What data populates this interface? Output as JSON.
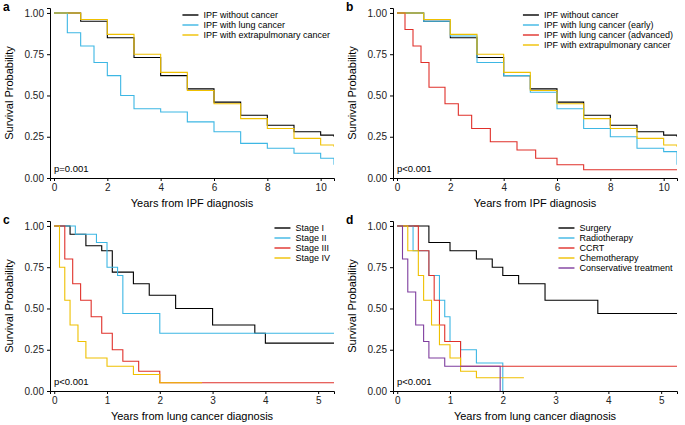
{
  "chart_data": [
    {
      "type": "step",
      "title": "a",
      "x_label": "Years from IPF diagnosis",
      "y_label": "Survival Probability",
      "annotation": "p=0.001",
      "legend": "top-right",
      "grid": false,
      "xlim": [
        -0.15,
        10.5
      ],
      "xticks": [
        0,
        2,
        4,
        6,
        8,
        10
      ],
      "ylim": [
        0,
        1.03
      ],
      "yticks": [
        {
          "value": 0,
          "label": "0.00"
        },
        {
          "value": 0.25,
          "label": "0.25"
        },
        {
          "value": 0.5,
          "label": "0.50"
        },
        {
          "value": 0.75,
          "label": "0.75"
        },
        {
          "value": 1,
          "label": "1.00"
        }
      ],
      "series": [
        {
          "name": "IPF without cancer",
          "color": "#000000",
          "x": [
            0,
            1,
            2,
            3,
            4,
            5,
            6,
            7,
            8,
            9,
            10,
            10.5
          ],
          "values": [
            1,
            0.95,
            0.85,
            0.73,
            0.62,
            0.54,
            0.46,
            0.38,
            0.32,
            0.28,
            0.26,
            0.25
          ]
        },
        {
          "name": "IPF with lung cancer",
          "color": "#3DB7E4",
          "x": [
            0,
            0.5,
            1,
            1.5,
            2,
            2.5,
            3,
            4,
            5,
            6,
            7,
            8,
            9,
            10,
            10.5
          ],
          "values": [
            1,
            0.88,
            0.8,
            0.7,
            0.62,
            0.5,
            0.42,
            0.4,
            0.34,
            0.28,
            0.21,
            0.18,
            0.15,
            0.12,
            0.08
          ]
        },
        {
          "name": "IPF with extrapulmonary cancer",
          "color": "#EFC000",
          "x": [
            0,
            1,
            2,
            3,
            4,
            5,
            6,
            7,
            8,
            9,
            10,
            10.5
          ],
          "values": [
            1,
            0.96,
            0.87,
            0.75,
            0.64,
            0.53,
            0.45,
            0.36,
            0.3,
            0.24,
            0.2,
            0.19
          ]
        }
      ]
    },
    {
      "type": "step",
      "title": "b",
      "x_label": "Years from IPF diagnosis",
      "y_label": "Survival Probability",
      "annotation": "p<0.001",
      "legend": "top-right",
      "grid": false,
      "xlim": [
        -0.15,
        10.5
      ],
      "xticks": [
        0,
        2,
        4,
        6,
        8,
        10
      ],
      "ylim": [
        0,
        1.03
      ],
      "yticks": [
        {
          "value": 0,
          "label": "0.00"
        },
        {
          "value": 0.25,
          "label": "0.25"
        },
        {
          "value": 0.5,
          "label": "0.50"
        },
        {
          "value": 0.75,
          "label": "0.75"
        },
        {
          "value": 1,
          "label": "1.00"
        }
      ],
      "series": [
        {
          "name": "IPF without cancer",
          "color": "#000000",
          "x": [
            0,
            1,
            2,
            3,
            4,
            5,
            6,
            7,
            8,
            9,
            10,
            10.5
          ],
          "values": [
            1,
            0.95,
            0.85,
            0.73,
            0.62,
            0.54,
            0.46,
            0.38,
            0.32,
            0.28,
            0.26,
            0.25
          ]
        },
        {
          "name": "IPF with lung cancer (early)",
          "color": "#3DB7E4",
          "x": [
            0,
            1,
            2,
            3,
            4,
            5,
            6,
            7,
            8,
            9,
            10,
            10.5
          ],
          "values": [
            1,
            0.95,
            0.86,
            0.7,
            0.62,
            0.52,
            0.42,
            0.3,
            0.25,
            0.18,
            0.16,
            0.08
          ]
        },
        {
          "name": "IPF with lung cancer (advanced)",
          "color": "#E0302A",
          "x": [
            0,
            0.3,
            0.6,
            0.9,
            1.2,
            1.8,
            2.3,
            2.8,
            3.5,
            4.5,
            5.2,
            6,
            7,
            10.5
          ],
          "values": [
            1,
            0.9,
            0.8,
            0.7,
            0.55,
            0.45,
            0.38,
            0.3,
            0.22,
            0.17,
            0.12,
            0.08,
            0.05,
            0.05
          ]
        },
        {
          "name": "IPF with extrapulmonary cancer",
          "color": "#EFC000",
          "x": [
            0,
            1,
            2,
            3,
            4,
            5,
            6,
            7,
            8,
            9,
            10,
            10.5
          ],
          "values": [
            1,
            0.96,
            0.87,
            0.75,
            0.64,
            0.53,
            0.45,
            0.36,
            0.3,
            0.24,
            0.2,
            0.19
          ]
        }
      ]
    },
    {
      "type": "step",
      "title": "c",
      "x_label": "Years from lung cancer diagnosis",
      "y_label": "Survival Probability",
      "annotation": "p<0.001",
      "legend": "top-right",
      "grid": false,
      "xlim": [
        -0.08,
        5.3
      ],
      "xticks": [
        0,
        1,
        2,
        3,
        4,
        5
      ],
      "ylim": [
        0,
        1.03
      ],
      "yticks": [
        {
          "value": 0,
          "label": "0.00"
        },
        {
          "value": 0.25,
          "label": "0.25"
        },
        {
          "value": 0.5,
          "label": "0.50"
        },
        {
          "value": 0.75,
          "label": "0.75"
        },
        {
          "value": 1,
          "label": "1.00"
        }
      ],
      "series": [
        {
          "name": "Stage I",
          "color": "#000000",
          "x": [
            0,
            0.3,
            0.6,
            0.9,
            1.1,
            1.5,
            1.8,
            2.3,
            3,
            3.8,
            4,
            5.3
          ],
          "values": [
            1,
            0.95,
            0.88,
            0.85,
            0.72,
            0.65,
            0.58,
            0.5,
            0.4,
            0.35,
            0.29,
            0.29
          ]
        },
        {
          "name": "Stage II",
          "color": "#3DB7E4",
          "x": [
            0,
            0.4,
            0.8,
            1,
            1.2,
            1.3,
            1.9,
            2,
            5.3
          ],
          "values": [
            1,
            0.95,
            0.9,
            0.75,
            0.7,
            0.47,
            0.47,
            0.35,
            0.35
          ]
        },
        {
          "name": "Stage III",
          "color": "#E0302A",
          "x": [
            0,
            0.2,
            0.35,
            0.5,
            0.7,
            0.9,
            1.1,
            1.3,
            1.6,
            2,
            5.3
          ],
          "values": [
            1,
            0.8,
            0.65,
            0.55,
            0.45,
            0.35,
            0.25,
            0.18,
            0.12,
            0.05,
            0.05
          ]
        },
        {
          "name": "Stage IV",
          "color": "#EFC000",
          "x": [
            0,
            0.1,
            0.2,
            0.3,
            0.45,
            0.6,
            1,
            1.5,
            2,
            2.8
          ],
          "values": [
            1,
            0.75,
            0.55,
            0.4,
            0.3,
            0.2,
            0.15,
            0.1,
            0.05,
            0.05
          ]
        }
      ]
    },
    {
      "type": "step",
      "title": "d",
      "x_label": "Years from lung cancer diagnosis",
      "y_label": "Survival Probability",
      "annotation": "p<0.001",
      "legend": "top-right",
      "grid": false,
      "xlim": [
        -0.08,
        5.3
      ],
      "xticks": [
        0,
        1,
        2,
        3,
        4,
        5
      ],
      "ylim": [
        0,
        1.03
      ],
      "yticks": [
        {
          "value": 0,
          "label": "0.00"
        },
        {
          "value": 0.25,
          "label": "0.25"
        },
        {
          "value": 0.5,
          "label": "0.50"
        },
        {
          "value": 0.75,
          "label": "0.75"
        },
        {
          "value": 1,
          "label": "1.00"
        }
      ],
      "series": [
        {
          "name": "Surgery",
          "color": "#000000",
          "x": [
            0,
            0.5,
            0.6,
            1,
            1.5,
            1.8,
            2,
            2.3,
            2.8,
            3.8,
            5.3
          ],
          "values": [
            1,
            1,
            0.9,
            0.85,
            0.8,
            0.75,
            0.7,
            0.65,
            0.55,
            0.47,
            0.47
          ]
        },
        {
          "name": "Radiotherapy",
          "color": "#3DB7E4",
          "x": [
            0,
            0.3,
            0.6,
            0.8,
            0.9,
            1,
            1.2,
            1.5,
            1.9,
            2
          ],
          "values": [
            1,
            0.85,
            0.7,
            0.55,
            0.45,
            0.3,
            0.25,
            0.17,
            0.17,
            0
          ]
        },
        {
          "name": "CCRT",
          "color": "#E0302A",
          "x": [
            0,
            0.4,
            0.6,
            0.7,
            0.8,
            0.9,
            1.2,
            5.3
          ],
          "values": [
            1,
            0.85,
            0.7,
            0.55,
            0.4,
            0.3,
            0.15,
            0.15
          ]
        },
        {
          "name": "Chemotherapy",
          "color": "#EFC000",
          "x": [
            0,
            0.2,
            0.4,
            0.5,
            0.65,
            0.8,
            1,
            1.2,
            1.5,
            2.4
          ],
          "values": [
            1,
            0.85,
            0.7,
            0.55,
            0.4,
            0.28,
            0.2,
            0.12,
            0.08,
            0.08
          ]
        },
        {
          "name": "Conservative treatment",
          "color": "#7E3D9E",
          "x": [
            0,
            0.1,
            0.2,
            0.35,
            0.5,
            0.6,
            0.9,
            1.9,
            1.95
          ],
          "values": [
            1,
            0.8,
            0.6,
            0.4,
            0.3,
            0.2,
            0.15,
            0.15,
            0
          ]
        }
      ]
    }
  ]
}
